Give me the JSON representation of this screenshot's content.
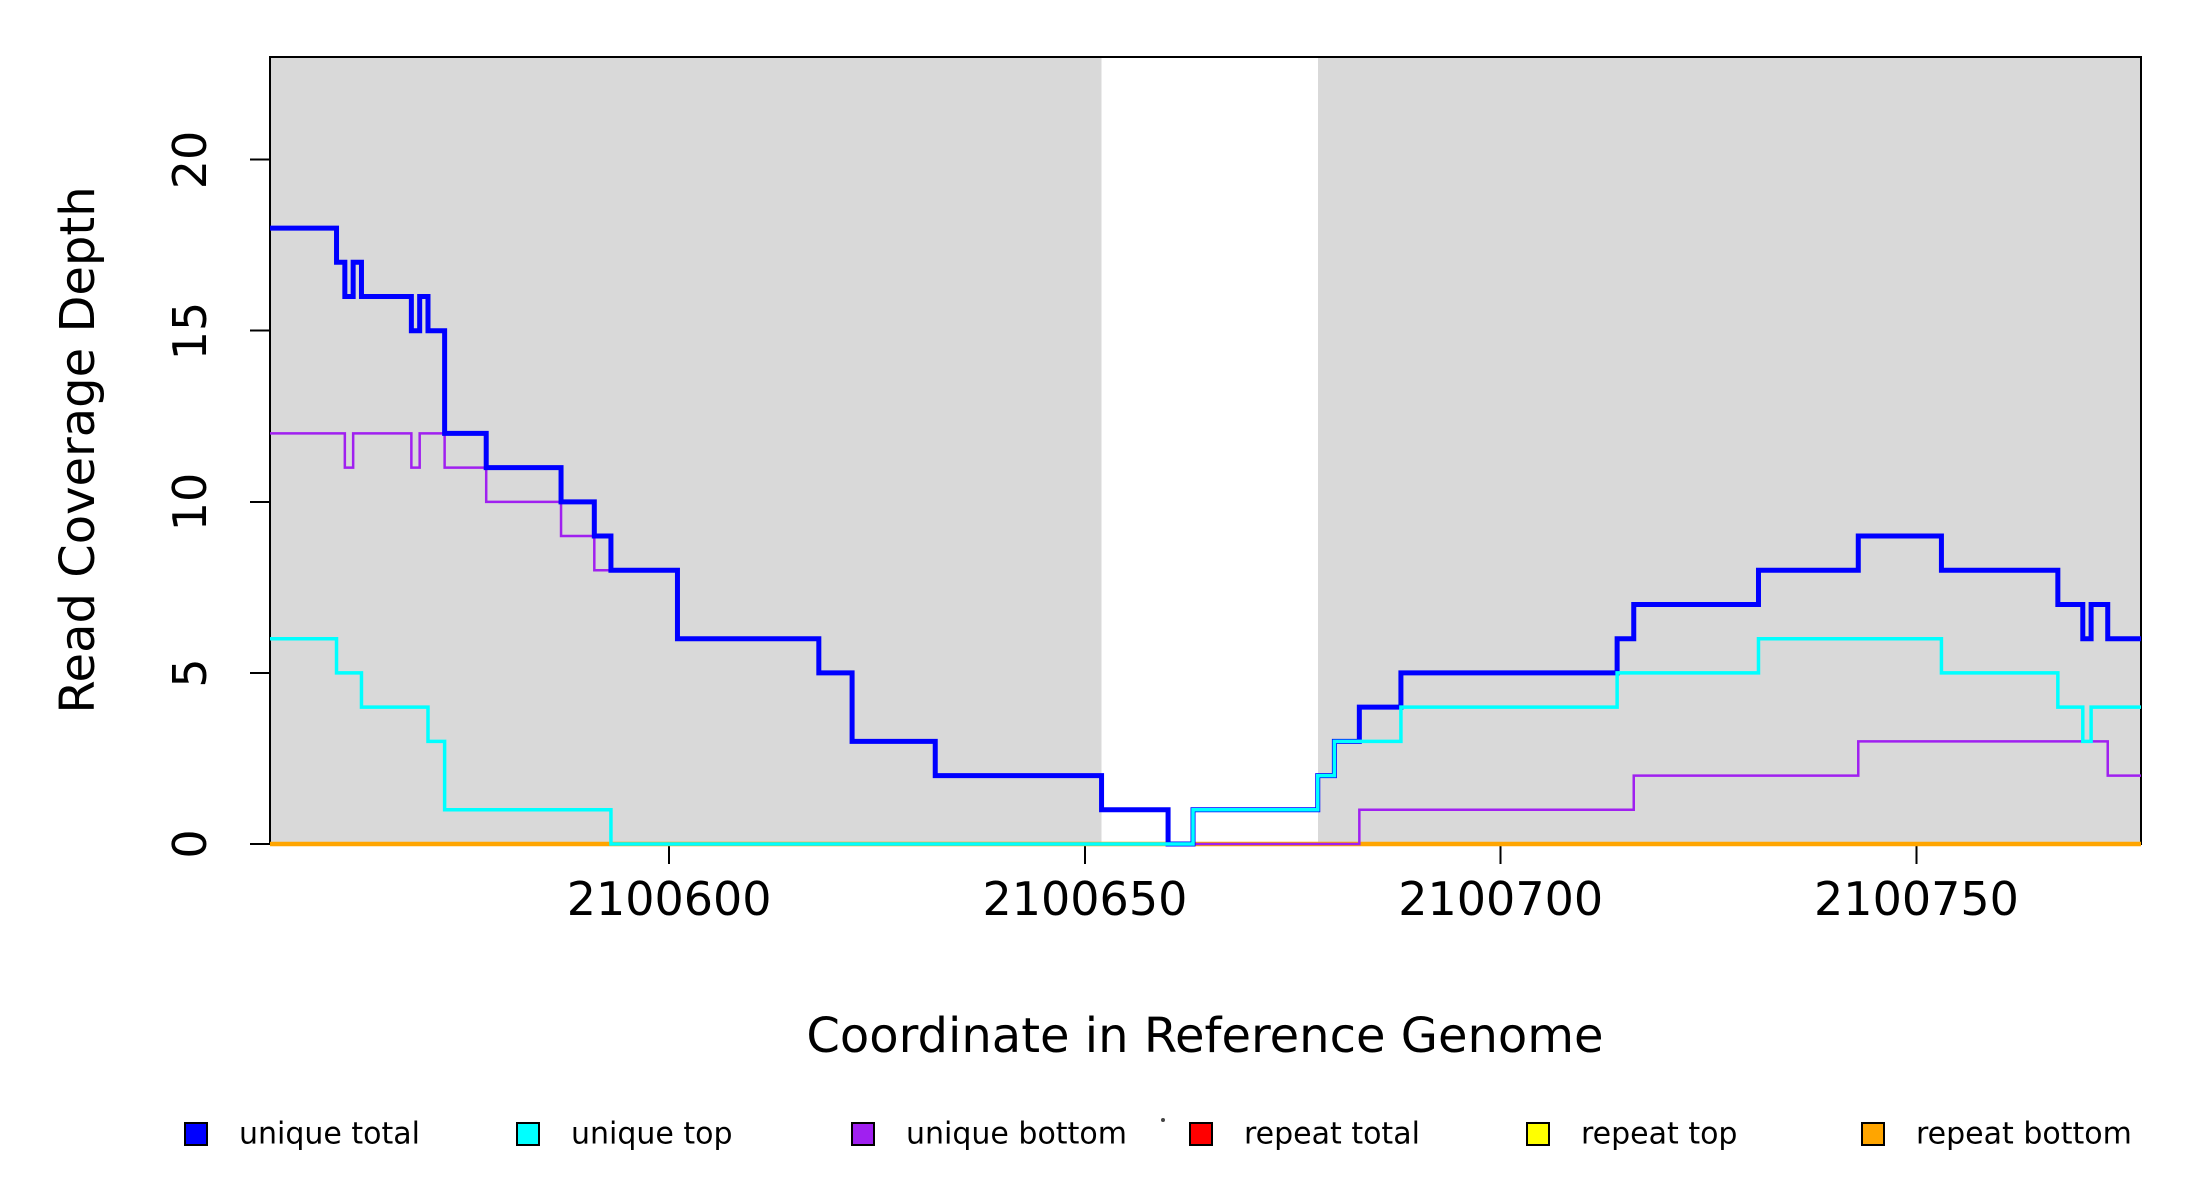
{
  "chart_data": {
    "type": "step-line",
    "title": "",
    "xlabel": "Coordinate in Reference Genome",
    "ylabel": "Read Coverage Depth",
    "xlim": [
      2100552,
      2100777
    ],
    "ylim": [
      0,
      23
    ],
    "x_ticks": [
      2100600,
      2100650,
      2100700,
      2100750
    ],
    "x_tick_labels": [
      "2100600",
      "2100650",
      "2100700",
      "2100750"
    ],
    "y_ticks": [
      0,
      5,
      10,
      15,
      20
    ],
    "y_tick_labels": [
      "0",
      "5",
      "10",
      "15",
      "20"
    ],
    "grid": false,
    "legend_position": "bottom",
    "colors": {
      "shaded_region": "#D9D9D9",
      "gap_region": "#FFFFFF",
      "axis": "#000000"
    },
    "shaded_regions": [
      {
        "from": 2100552,
        "to": 2100652
      },
      {
        "from": 2100678,
        "to": 2100777
      }
    ],
    "gap_region": {
      "from": 2100652,
      "to": 2100678
    },
    "series": [
      {
        "name": "repeat total",
        "color": "#FF0000",
        "line_width": 4,
        "steps": [
          [
            2100552,
            0
          ],
          [
            2100777,
            0
          ]
        ]
      },
      {
        "name": "repeat top",
        "color": "#FFFF00",
        "line_width": 4,
        "steps": [
          [
            2100552,
            0
          ],
          [
            2100777,
            0
          ]
        ]
      },
      {
        "name": "repeat bottom",
        "color": "#FFA500",
        "line_width": 4.5,
        "steps": [
          [
            2100552,
            0
          ],
          [
            2100777,
            0
          ]
        ]
      },
      {
        "name": "unique bottom",
        "color": "#A020F0",
        "line_width": 2.5,
        "steps": [
          [
            2100552,
            12
          ],
          [
            2100561,
            11
          ],
          [
            2100562,
            12
          ],
          [
            2100569,
            11
          ],
          [
            2100570,
            12
          ],
          [
            2100573,
            11
          ],
          [
            2100578,
            10
          ],
          [
            2100587,
            9
          ],
          [
            2100591,
            8
          ],
          [
            2100601,
            6
          ],
          [
            2100618,
            5
          ],
          [
            2100622,
            3
          ],
          [
            2100632,
            2
          ],
          [
            2100652,
            1
          ],
          [
            2100660,
            0
          ],
          [
            2100683,
            1
          ],
          [
            2100716,
            2
          ],
          [
            2100743,
            3
          ],
          [
            2100773,
            2
          ],
          [
            2100777,
            2
          ]
        ]
      },
      {
        "name": "unique total",
        "color": "#0000FF",
        "line_width": 5,
        "steps": [
          [
            2100552,
            18
          ],
          [
            2100560,
            17
          ],
          [
            2100561,
            16
          ],
          [
            2100562,
            17
          ],
          [
            2100563,
            16
          ],
          [
            2100569,
            15
          ],
          [
            2100570,
            16
          ],
          [
            2100571,
            15
          ],
          [
            2100573,
            12
          ],
          [
            2100578,
            11
          ],
          [
            2100587,
            10
          ],
          [
            2100591,
            9
          ],
          [
            2100593,
            8
          ],
          [
            2100601,
            6
          ],
          [
            2100618,
            5
          ],
          [
            2100622,
            3
          ],
          [
            2100632,
            2
          ],
          [
            2100652,
            1
          ],
          [
            2100660,
            0
          ],
          [
            2100663,
            1
          ],
          [
            2100678,
            2
          ],
          [
            2100680,
            3
          ],
          [
            2100683,
            4
          ],
          [
            2100688,
            5
          ],
          [
            2100714,
            6
          ],
          [
            2100716,
            7
          ],
          [
            2100731,
            8
          ],
          [
            2100743,
            9
          ],
          [
            2100753,
            8
          ],
          [
            2100767,
            7
          ],
          [
            2100770,
            6
          ],
          [
            2100771,
            7
          ],
          [
            2100773,
            6
          ],
          [
            2100777,
            6
          ]
        ]
      },
      {
        "name": "unique top",
        "color": "#00FFFF",
        "line_width": 3.5,
        "steps": [
          [
            2100552,
            6
          ],
          [
            2100560,
            5
          ],
          [
            2100563,
            4
          ],
          [
            2100571,
            3
          ],
          [
            2100573,
            1
          ],
          [
            2100593,
            0
          ],
          [
            2100663,
            1
          ],
          [
            2100678,
            2
          ],
          [
            2100680,
            3
          ],
          [
            2100688,
            4
          ],
          [
            2100714,
            5
          ],
          [
            2100731,
            6
          ],
          [
            2100753,
            5
          ],
          [
            2100767,
            4
          ],
          [
            2100770,
            3
          ],
          [
            2100771,
            4
          ],
          [
            2100777,
            4
          ]
        ]
      }
    ],
    "legend": {
      "items": [
        {
          "label": "unique total",
          "color": "#0000FF"
        },
        {
          "label": "unique top",
          "color": "#00FFFF"
        },
        {
          "label": "unique bottom",
          "color": "#A020F0"
        },
        {
          "label": "repeat total",
          "color": "#FF0000"
        },
        {
          "label": "repeat top",
          "color": "#FFFF00"
        },
        {
          "label": "repeat bottom",
          "color": "#FFA500"
        }
      ]
    }
  }
}
